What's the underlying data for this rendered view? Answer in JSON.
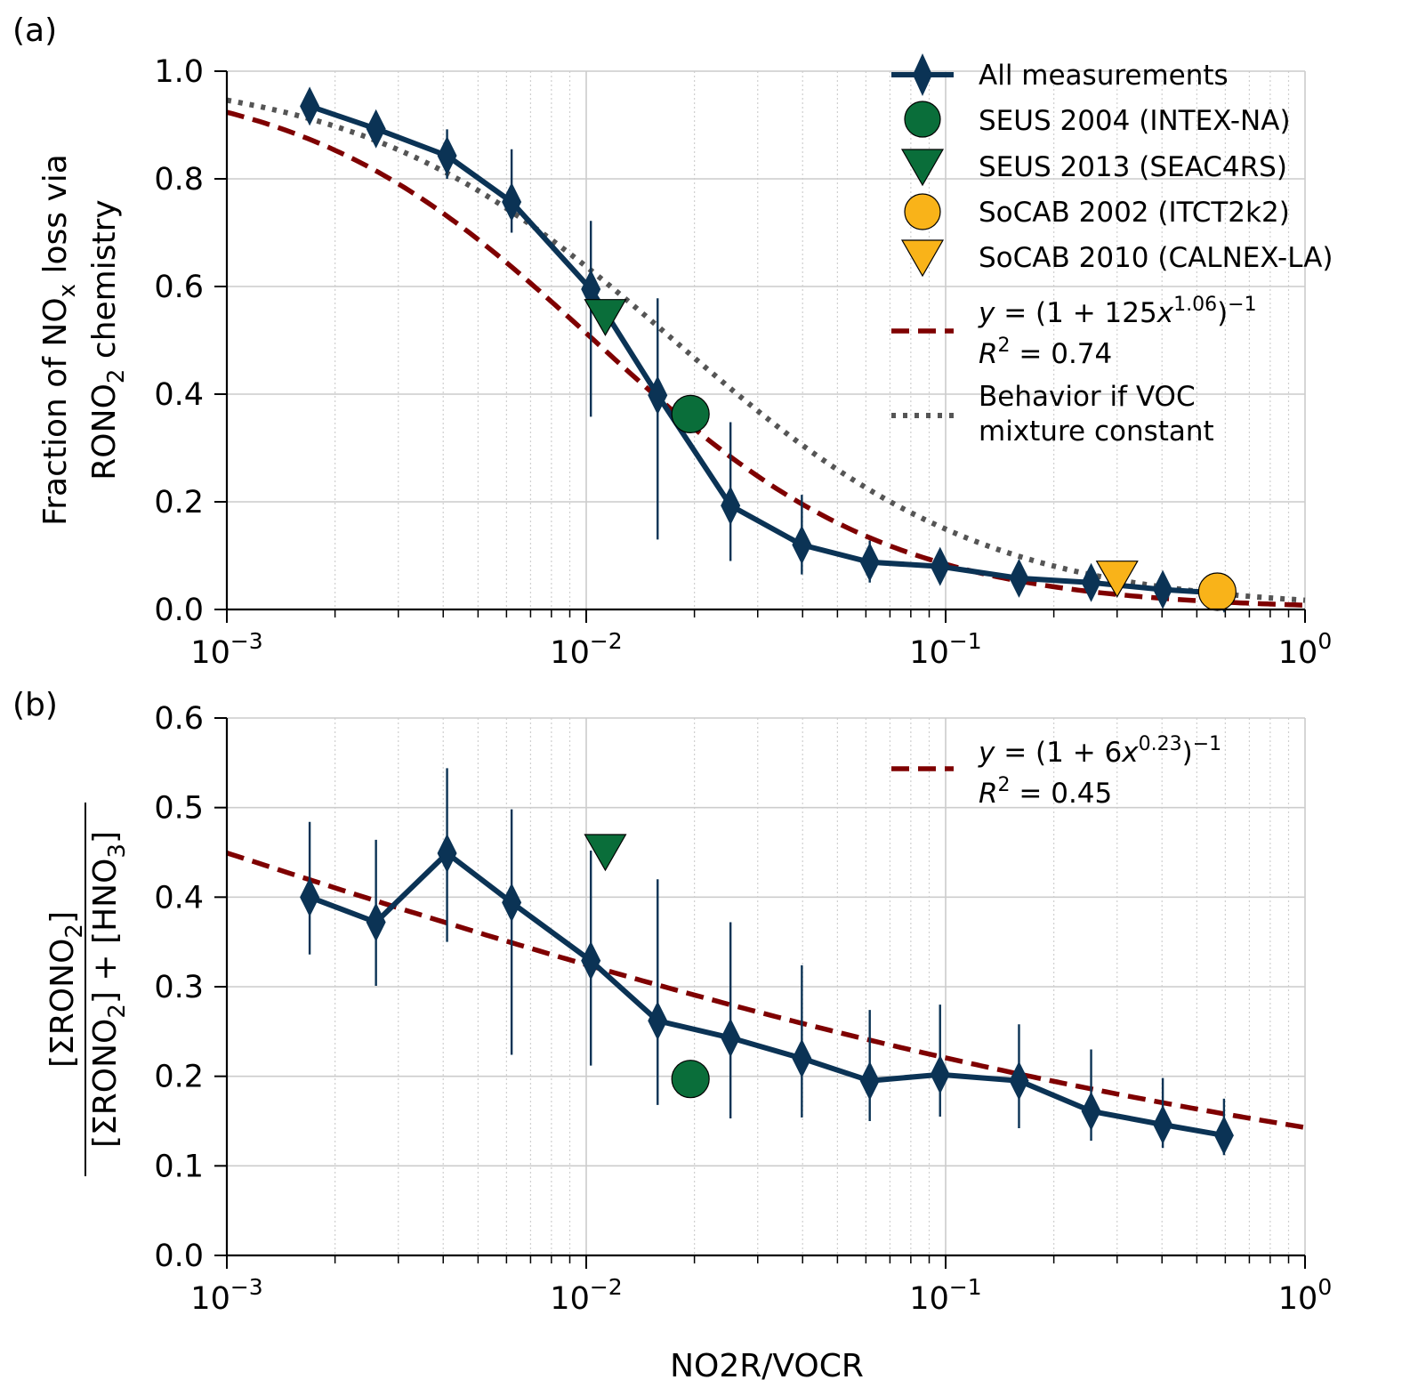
{
  "chart_data": [
    {
      "type": "line",
      "panel_label": "(a)",
      "xscale": "log",
      "xlim": [
        0.001,
        1
      ],
      "ylim": [
        0,
        1.0
      ],
      "xticks": [
        0.001,
        0.01,
        0.1,
        1
      ],
      "xtick_labels": [
        {
          "base": "10",
          "exp": "−3"
        },
        {
          "base": "10",
          "exp": "−2"
        },
        {
          "base": "10",
          "exp": "−1"
        },
        {
          "base": "10",
          "exp": "0"
        }
      ],
      "yticks": [
        "0.0",
        "0.2",
        "0.4",
        "0.6",
        "0.8",
        "1.0"
      ],
      "ylabel_line1_pre": "Fraction of NO",
      "ylabel_line1_sub": "x",
      "ylabel_line1_post": " loss via",
      "ylabel_line2_pre": "RONO",
      "ylabel_line2_sub": "2",
      "ylabel_line2_post": " chemistry",
      "grid": true,
      "legend_position": "top-right",
      "series": [
        {
          "name": "All measurements",
          "kind": "line-markers",
          "color": "#0b3355",
          "marker": "diamond",
          "x": [
            0.0017,
            0.0026,
            0.0041,
            0.0062,
            0.0103,
            0.0158,
            0.0252,
            0.0398,
            0.0615,
            0.0965,
            0.16,
            0.254,
            0.402,
            0.595
          ],
          "y": [
            0.935,
            0.893,
            0.843,
            0.757,
            0.595,
            0.398,
            0.193,
            0.12,
            0.088,
            0.08,
            0.058,
            0.05,
            0.037,
            0.03
          ],
          "err_low": [
            0.935,
            0.893,
            0.8,
            0.7,
            0.358,
            0.13,
            0.09,
            0.065,
            0.05,
            0.063,
            0.04,
            0.035,
            0.023,
            0.017
          ],
          "err_high": [
            0.935,
            0.893,
            0.892,
            0.855,
            0.722,
            0.578,
            0.348,
            0.213,
            0.128,
            0.1,
            0.08,
            0.065,
            0.052,
            0.045
          ]
        },
        {
          "name": "SEUS 2004 (INTEX-NA)",
          "kind": "point",
          "marker": "circle",
          "color": "#0a6e3a",
          "x": [
            0.0195
          ],
          "y": [
            0.363
          ]
        },
        {
          "name": "SEUS 2013 (SEAC4RS)",
          "kind": "point",
          "marker": "triangle-down",
          "color": "#0a6e3a",
          "x": [
            0.0113
          ],
          "y": [
            0.546
          ]
        },
        {
          "name": "SoCAB 2002 (ITCT2k2)",
          "kind": "point",
          "marker": "circle",
          "color": "#f9b319",
          "x": [
            0.57
          ],
          "y": [
            0.033
          ]
        },
        {
          "name": "SoCAB 2010 (CALNEX-LA)",
          "kind": "point",
          "marker": "triangle-down",
          "color": "#f9b319",
          "x": [
            0.3
          ],
          "y": [
            0.06
          ]
        },
        {
          "name_eq": "y = (1 + 125x^1.06)^−1",
          "name_r2": "R^2 = 0.74",
          "kind": "fit-dashed",
          "color": "#7f0000",
          "fit": {
            "a": 125,
            "b": 1.06
          }
        },
        {
          "name_line1": "Behavior if VOC",
          "name_line2": "mixture constant",
          "kind": "fit-dotted",
          "color": "#555555",
          "fit": {
            "a": 57,
            "b": 1.0
          }
        }
      ],
      "legend_eq": {
        "y": "y",
        "eq": " = (1 + 125",
        "x": "x",
        "exp": "1.06",
        "close": ")",
        "inv": "−1",
        "r": "R",
        "r2exp": "2",
        "r2val": " = 0.74"
      }
    },
    {
      "type": "line",
      "panel_label": "(b)",
      "xscale": "log",
      "xlim": [
        0.001,
        1
      ],
      "ylim": [
        0,
        0.6
      ],
      "xticks": [
        0.001,
        0.01,
        0.1,
        1
      ],
      "xtick_labels": [
        {
          "base": "10",
          "exp": "−3"
        },
        {
          "base": "10",
          "exp": "−2"
        },
        {
          "base": "10",
          "exp": "−1"
        },
        {
          "base": "10",
          "exp": "0"
        }
      ],
      "yticks": [
        "0.0",
        "0.1",
        "0.2",
        "0.3",
        "0.4",
        "0.5",
        "0.6"
      ],
      "xlabel": "NO2R/VOCR",
      "ylabel_num": "[ΣRONO",
      "ylabel_num_sub": "2",
      "ylabel_num_close": "]",
      "ylabel_den1": "[ΣRONO",
      "ylabel_den_sub": "2",
      "ylabel_den2": "] + [HNO",
      "ylabel_den_sub2": "3",
      "ylabel_den3": "]",
      "grid": true,
      "legend_position": "top-right",
      "series": [
        {
          "name": "All measurements",
          "kind": "line-markers",
          "color": "#0b3355",
          "marker": "diamond",
          "x": [
            0.0017,
            0.0026,
            0.0041,
            0.0062,
            0.0103,
            0.0158,
            0.0252,
            0.0398,
            0.0615,
            0.0965,
            0.16,
            0.254,
            0.402,
            0.595
          ],
          "y": [
            0.4,
            0.372,
            0.449,
            0.394,
            0.329,
            0.262,
            0.243,
            0.22,
            0.195,
            0.202,
            0.195,
            0.161,
            0.146,
            0.134
          ],
          "err_low": [
            0.336,
            0.301,
            0.35,
            0.224,
            0.212,
            0.168,
            0.153,
            0.154,
            0.15,
            0.155,
            0.142,
            0.128,
            0.12,
            0.112
          ],
          "err_high": [
            0.484,
            0.464,
            0.544,
            0.498,
            0.452,
            0.42,
            0.372,
            0.324,
            0.274,
            0.28,
            0.258,
            0.23,
            0.198,
            0.175
          ]
        },
        {
          "kind": "point",
          "marker": "circle",
          "color": "#0a6e3a",
          "x": [
            0.0195
          ],
          "y": [
            0.197
          ]
        },
        {
          "kind": "point",
          "marker": "triangle-down",
          "color": "#0a6e3a",
          "x": [
            0.0113
          ],
          "y": [
            0.452
          ]
        },
        {
          "kind": "fit-dashed",
          "color": "#7f0000",
          "fit": {
            "a": 6,
            "b": 0.23
          }
        }
      ],
      "legend_eq": {
        "y": "y",
        "eq": " = (1 + 6",
        "x": "x",
        "exp": "0.23",
        "close": ")",
        "inv": "−1",
        "r": "R",
        "r2exp": "2",
        "r2val": " = 0.45"
      }
    }
  ]
}
